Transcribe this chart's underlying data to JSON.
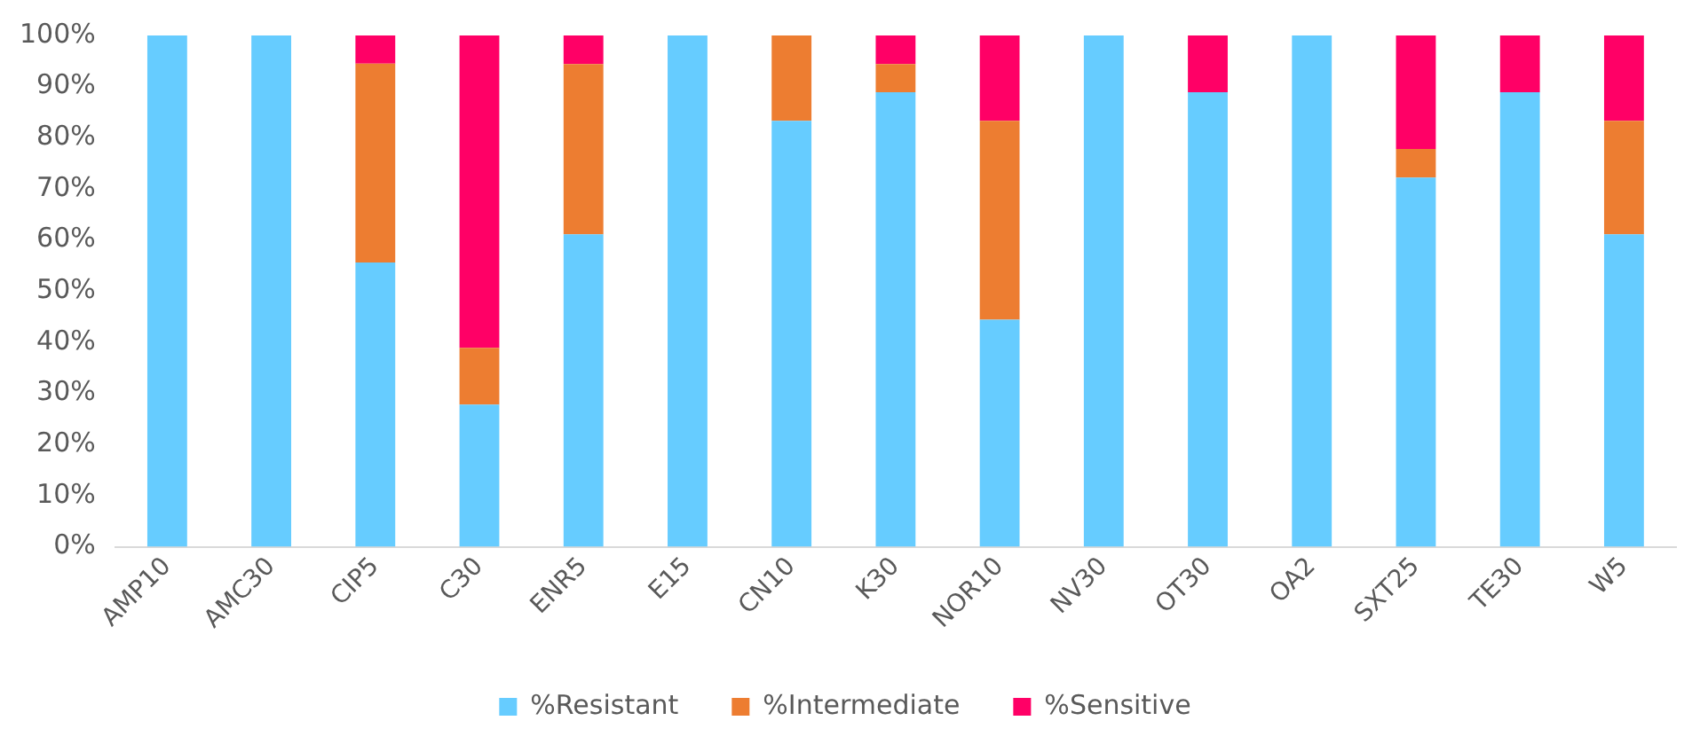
{
  "chart_data": {
    "type": "bar",
    "stacked": true,
    "categories": [
      "AMP10",
      "AMC30",
      "CIP5",
      "C30",
      "ENR5",
      "E15",
      "CN10",
      "K30",
      "NOR10",
      "NV30",
      "OT30",
      "OA2",
      "SXT25",
      "TE30",
      "W5"
    ],
    "series": [
      {
        "name": "%Resistant",
        "color": "#66ccff",
        "values": [
          100,
          100,
          55.6,
          27.8,
          61.1,
          100,
          83.3,
          88.9,
          44.4,
          100,
          88.9,
          100,
          72.2,
          88.9,
          61.1
        ]
      },
      {
        "name": "%Intermediate",
        "color": "#ed7d31",
        "values": [
          0,
          0,
          38.9,
          11.1,
          33.3,
          0,
          16.7,
          5.5,
          38.9,
          0,
          0,
          0,
          5.6,
          0,
          22.2
        ]
      },
      {
        "name": "%Sensitive",
        "color": "#ff0066",
        "values": [
          0,
          0,
          5.5,
          61.1,
          5.6,
          0,
          0,
          5.6,
          16.7,
          0,
          11.1,
          0,
          22.2,
          11.1,
          16.7
        ]
      }
    ],
    "ylim": [
      0,
      100
    ],
    "yticks": [
      {
        "value": 0,
        "label": "0%"
      },
      {
        "value": 10,
        "label": "10%"
      },
      {
        "value": 20,
        "label": "20%"
      },
      {
        "value": 30,
        "label": "30%"
      },
      {
        "value": 40,
        "label": "40%"
      },
      {
        "value": 50,
        "label": "50%"
      },
      {
        "value": 60,
        "label": "60%"
      },
      {
        "value": 70,
        "label": "70%"
      },
      {
        "value": 80,
        "label": "80%"
      },
      {
        "value": 90,
        "label": "90%"
      },
      {
        "value": 100,
        "label": "100%"
      }
    ],
    "legend": "bottom"
  }
}
